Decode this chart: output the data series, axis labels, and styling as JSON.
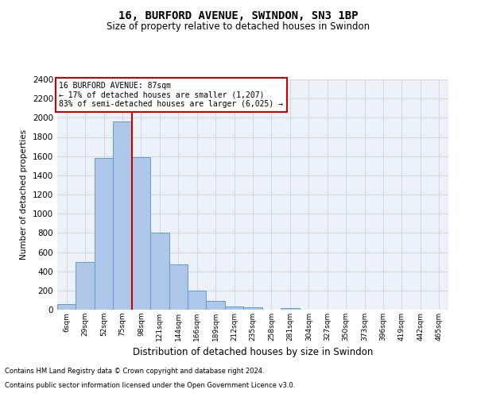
{
  "title_line1": "16, BURFORD AVENUE, SWINDON, SN3 1BP",
  "title_line2": "Size of property relative to detached houses in Swindon",
  "xlabel": "Distribution of detached houses by size in Swindon",
  "ylabel": "Number of detached properties",
  "annotation_line1": "16 BURFORD AVENUE: 87sqm",
  "annotation_line2": "← 17% of detached houses are smaller (1,207)",
  "annotation_line3": "83% of semi-detached houses are larger (6,025) →",
  "footer_line1": "Contains HM Land Registry data © Crown copyright and database right 2024.",
  "footer_line2": "Contains public sector information licensed under the Open Government Licence v3.0.",
  "bar_labels": [
    "6sqm",
    "29sqm",
    "52sqm",
    "75sqm",
    "98sqm",
    "121sqm",
    "144sqm",
    "166sqm",
    "189sqm",
    "212sqm",
    "235sqm",
    "258sqm",
    "281sqm",
    "304sqm",
    "327sqm",
    "350sqm",
    "373sqm",
    "396sqm",
    "419sqm",
    "442sqm",
    "465sqm"
  ],
  "bar_values": [
    60,
    500,
    1580,
    1960,
    1590,
    800,
    475,
    200,
    90,
    35,
    28,
    0,
    20,
    0,
    0,
    0,
    0,
    0,
    0,
    0,
    0
  ],
  "bar_color": "#aec6e8",
  "bar_edgecolor": "#5a9fd4",
  "grid_color": "#d0d8e8",
  "background_color": "#eef2f8",
  "vline_color": "#cc0000",
  "ylim": [
    0,
    2400
  ],
  "yticks": [
    0,
    200,
    400,
    600,
    800,
    1000,
    1200,
    1400,
    1600,
    1800,
    2000,
    2200,
    2400
  ],
  "annotation_box_edgecolor": "#cc0000",
  "annotation_box_facecolor": "#ffffff"
}
